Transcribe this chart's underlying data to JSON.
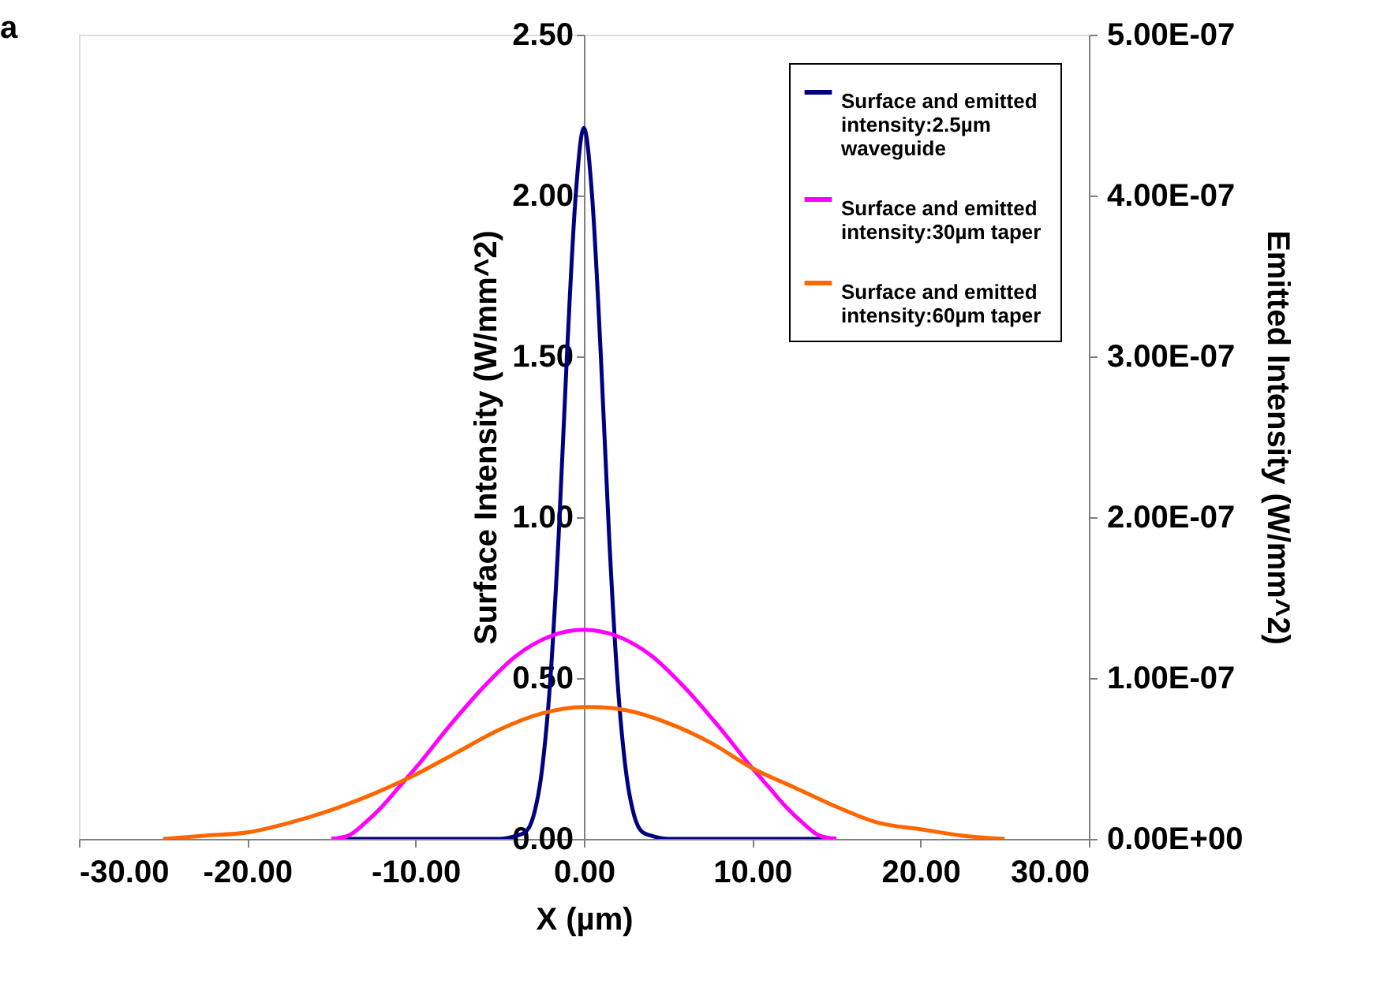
{
  "chart_data": {
    "type": "line",
    "xlabel": "X (µm)",
    "ylabel": "Surface Intensity (W/mm^2)",
    "y2label": "Emitted Intensity (W/mm^2)",
    "annotations": [
      "a"
    ],
    "xlim": [
      -30,
      30
    ],
    "xticks": [
      {
        "value": -30,
        "label": "-30.00"
      },
      {
        "value": -20,
        "label": "-20.00"
      },
      {
        "value": -10,
        "label": "-10.00"
      },
      {
        "value": 0,
        "label": "0.00"
      },
      {
        "value": 10,
        "label": "10.00"
      },
      {
        "value": 20,
        "label": "20.00"
      },
      {
        "value": 30,
        "label": "30.00"
      }
    ],
    "ylim": [
      0,
      2.5
    ],
    "yticks": [
      {
        "value": 0,
        "label": "0.00"
      },
      {
        "value": 0.5,
        "label": "0.50"
      },
      {
        "value": 1,
        "label": "1.00"
      },
      {
        "value": 1.5,
        "label": "1.50"
      },
      {
        "value": 2,
        "label": "2.00"
      },
      {
        "value": 2.5,
        "label": "2.50"
      }
    ],
    "y2lim": [
      0,
      5e-07
    ],
    "y2ticks": [
      {
        "value": 0,
        "label": "0.00E+00"
      },
      {
        "value": 1e-07,
        "label": "1.00E-07"
      },
      {
        "value": 2e-07,
        "label": "2.00E-07"
      },
      {
        "value": 3e-07,
        "label": "3.00E-07"
      },
      {
        "value": 4e-07,
        "label": "4.00E-07"
      },
      {
        "value": 5e-07,
        "label": "5.00E-07"
      }
    ],
    "legend": "top right",
    "series": [
      {
        "name": "Surface and emitted intensity:2.5µm  waveguide",
        "color": "#000080",
        "x": [
          -15,
          -5,
          -4,
          -3.5,
          -3,
          -2.5,
          -2,
          -1.5,
          -1,
          -0.5,
          0,
          0.5,
          1,
          1.5,
          2,
          2.5,
          3,
          3.5,
          4,
          5,
          15
        ],
        "values": [
          0,
          0,
          0.01,
          0.02,
          0.07,
          0.21,
          0.49,
          0.94,
          1.51,
          1.99,
          2.21,
          1.99,
          1.51,
          0.94,
          0.49,
          0.21,
          0.07,
          0.02,
          0.01,
          0,
          0
        ]
      },
      {
        "name": "Surface and emitted intensity:30µm  taper",
        "color": "#ff00ff",
        "x": [
          -15,
          -14,
          -13,
          -12,
          -11,
          -10,
          -8,
          -6,
          -4,
          -2,
          0,
          2,
          4,
          6,
          8,
          10,
          11,
          12,
          13,
          14,
          15
        ],
        "values": [
          0,
          0.01,
          0.05,
          0.1,
          0.16,
          0.22,
          0.35,
          0.47,
          0.57,
          0.63,
          0.65,
          0.63,
          0.57,
          0.47,
          0.35,
          0.22,
          0.16,
          0.1,
          0.05,
          0.01,
          0
        ]
      },
      {
        "name": "Surface and emitted intensity:60µm  taper",
        "color": "#ff6600",
        "x": [
          -25,
          -22.5,
          -20,
          -17.5,
          -15,
          -12.5,
          -10,
          -7.5,
          -5,
          -2.5,
          0,
          0.5,
          2.5,
          5,
          7.5,
          10,
          12.5,
          15,
          17.5,
          20,
          22.5,
          25
        ],
        "values": [
          0,
          0.01,
          0.02,
          0.05,
          0.09,
          0.14,
          0.2,
          0.27,
          0.34,
          0.39,
          0.41,
          0.41,
          0.4,
          0.36,
          0.3,
          0.22,
          0.16,
          0.1,
          0.05,
          0.03,
          0.01,
          0
        ]
      }
    ]
  }
}
